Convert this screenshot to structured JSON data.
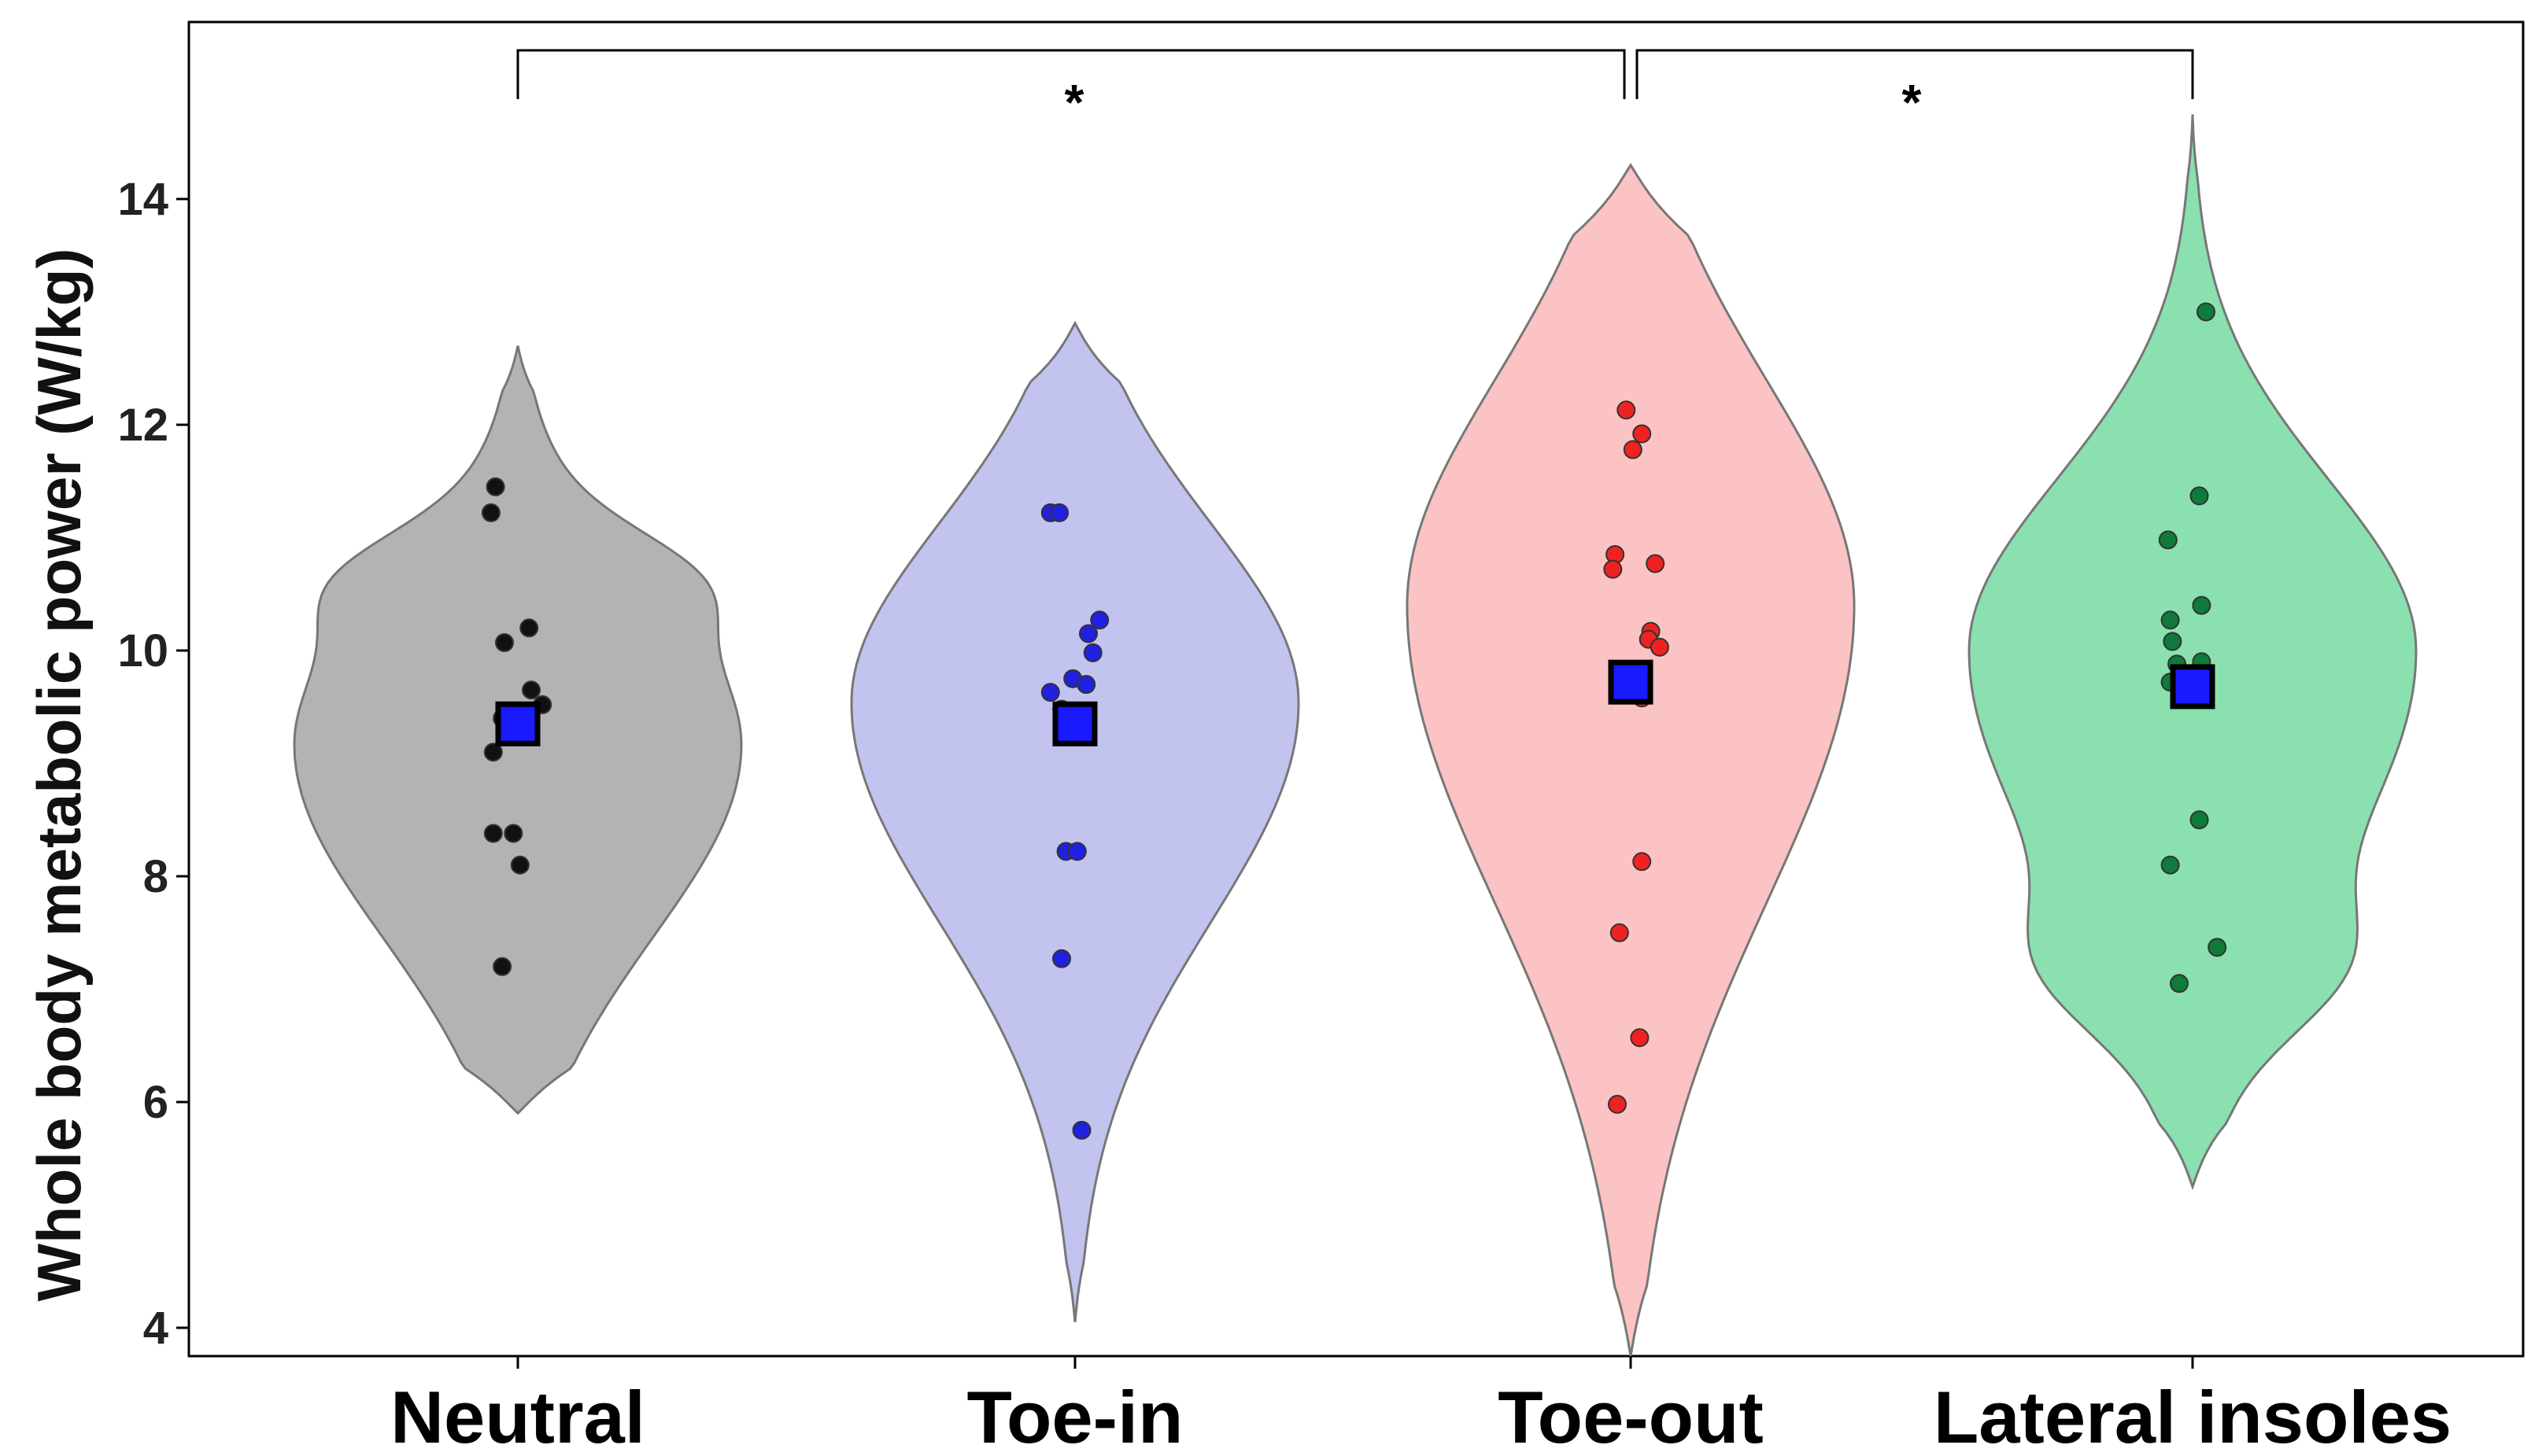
{
  "chart_data": {
    "type": "violin",
    "title": "",
    "xlabel": "",
    "ylabel": "Whole body metabolic power (W/kg)",
    "ylim": [
      3.8,
      15.6
    ],
    "yticks": [
      4,
      6,
      8,
      10,
      12,
      14
    ],
    "categories": [
      "Neutral",
      "Toe-in",
      "Toe-out",
      "Lateral insoles"
    ],
    "series": [
      {
        "name": "Neutral",
        "fill": "#b3b3b3",
        "point_color": "#111111",
        "range": [
          5.9,
          12.7
        ],
        "mean": 9.35,
        "points": [
          11.45,
          11.22,
          10.2,
          10.07,
          9.65,
          9.52,
          9.4,
          9.3,
          9.28,
          9.1,
          8.38,
          8.38,
          8.1,
          7.2
        ]
      },
      {
        "name": "Toe-in",
        "fill": "#c3c3f0",
        "point_color": "#2020e0",
        "range": [
          4.05,
          12.9
        ],
        "mean": 9.35,
        "points": [
          11.22,
          11.22,
          10.27,
          10.15,
          9.98,
          9.75,
          9.7,
          9.63,
          9.48,
          9.45,
          8.22,
          8.22,
          7.27,
          5.75
        ]
      },
      {
        "name": "Toe-out",
        "fill": "#fbc3c3",
        "point_color": "#ee2222",
        "range": [
          3.75,
          14.3
        ],
        "mean": 9.72,
        "points": [
          12.13,
          11.92,
          11.78,
          10.85,
          10.77,
          10.72,
          10.17,
          10.1,
          10.03,
          9.58,
          8.13,
          7.5,
          6.57,
          5.98
        ]
      },
      {
        "name": "Lateral insoles",
        "fill": "#8be0b0",
        "point_color": "#0f7a3a",
        "range": [
          5.25,
          14.75
        ],
        "mean": 9.68,
        "points": [
          13.0,
          11.37,
          10.98,
          10.4,
          10.27,
          10.08,
          9.9,
          9.88,
          9.72,
          8.5,
          8.1,
          7.37,
          7.05
        ]
      }
    ],
    "mean_marker": {
      "fill": "#1a1aff",
      "stroke": "#000000"
    },
    "significance": [
      {
        "from": "Neutral",
        "to": "Toe-out",
        "label": "*"
      },
      {
        "from": "Toe-out",
        "to": "Lateral insoles",
        "label": "*"
      }
    ],
    "grid": false,
    "legend": "none"
  }
}
